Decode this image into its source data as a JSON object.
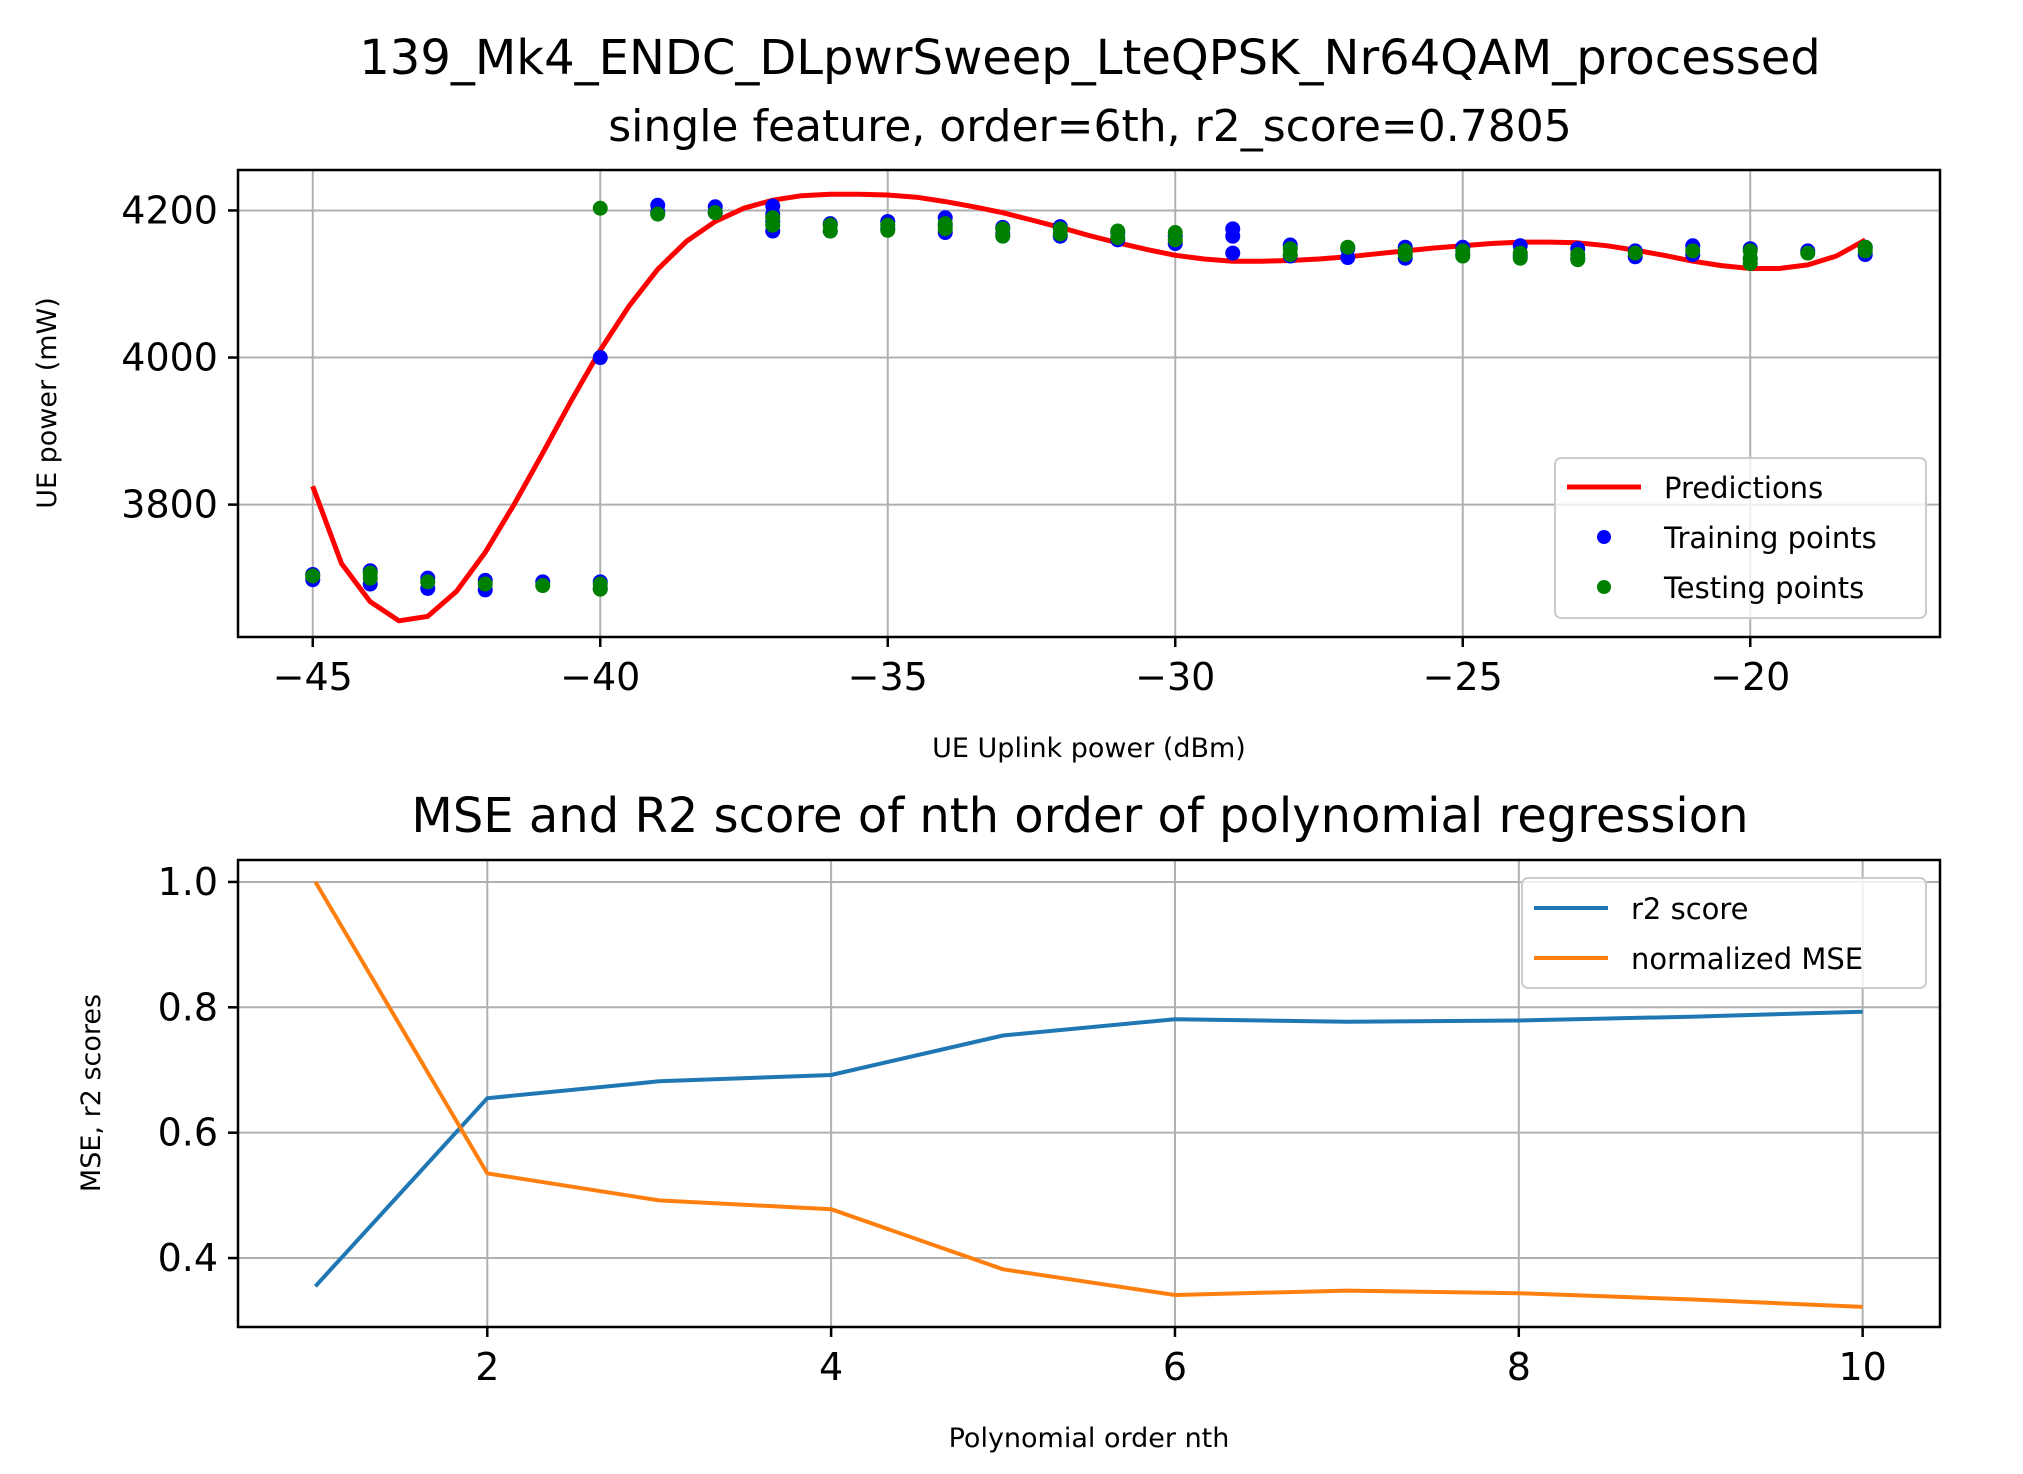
{
  "chart_data": [
    {
      "type": "scatter",
      "title_line1": "139_Mk4_ENDC_DLpwrSweep_LteQPSK_Nr64QAM_processed",
      "title_line2": "single feature, order=6th, r2_score=0.7805",
      "xlabel": "UE Uplink power (dBm)",
      "ylabel": "UE power (mW)",
      "xlim": [
        -46.3,
        -16.7
      ],
      "ylim": [
        3620,
        4255
      ],
      "xticks": [
        -45,
        -40,
        -35,
        -30,
        -25,
        -20
      ],
      "yticks": [
        3800,
        4000,
        4200
      ],
      "xtick_labels": [
        "−45",
        "−40",
        "−35",
        "−30",
        "−25",
        "−20"
      ],
      "ytick_labels": [
        "3800",
        "4000",
        "4200"
      ],
      "grid": true,
      "legend_position": "lower-right",
      "legend": [
        "Predictions",
        "Training points",
        "Testing points"
      ],
      "colors": {
        "predictions": "#ff0000",
        "training": "#0000ff",
        "testing": "#008000"
      },
      "predictions": {
        "x": [
          -45,
          -44.5,
          -44,
          -43.5,
          -43,
          -42.5,
          -42,
          -41.5,
          -41,
          -40.5,
          -40,
          -39.5,
          -39,
          -38.5,
          -38,
          -37.5,
          -37,
          -36.5,
          -36,
          -35.5,
          -35,
          -34.5,
          -34,
          -33.5,
          -33,
          -32.5,
          -32,
          -31.5,
          -31,
          -30.5,
          -30,
          -29.5,
          -29,
          -28.5,
          -28,
          -27.5,
          -27,
          -26.5,
          -26,
          -25.5,
          -25,
          -24.5,
          -24,
          -23.5,
          -23,
          -22.5,
          -22,
          -21.5,
          -21,
          -20.5,
          -20,
          -19.5,
          -19,
          -18.5,
          -18
        ],
        "y": [
          3825,
          3720,
          3668,
          3642,
          3648,
          3682,
          3735,
          3800,
          3870,
          3942,
          4010,
          4070,
          4120,
          4158,
          4185,
          4203,
          4214,
          4220,
          4222,
          4222,
          4221,
          4218,
          4212,
          4205,
          4197,
          4187,
          4177,
          4166,
          4156,
          4147,
          4139,
          4134,
          4131,
          4131,
          4132,
          4134,
          4137,
          4141,
          4145,
          4149,
          4152,
          4155,
          4157,
          4157,
          4156,
          4152,
          4146,
          4139,
          4131,
          4125,
          4121,
          4121,
          4126,
          4138,
          4160
        ]
      },
      "training_points": {
        "x": [
          -45,
          -45,
          -44,
          -44,
          -43,
          -43,
          -42,
          -42,
          -41,
          -40,
          -40,
          -40,
          -39,
          -39,
          -38,
          -38,
          -37,
          -37,
          -37,
          -37,
          -36,
          -36,
          -35,
          -35,
          -34,
          -34,
          -34,
          -33,
          -33,
          -32,
          -32,
          -31,
          -31,
          -30,
          -30,
          -29,
          -29,
          -29,
          -28,
          -28,
          -27,
          -27,
          -26,
          -26,
          -25,
          -25,
          -24,
          -24,
          -23,
          -23,
          -22,
          -22,
          -21,
          -21,
          -20,
          -20,
          -19,
          -18,
          -18
        ],
        "y": [
          3705,
          3698,
          3710,
          3692,
          3700,
          3686,
          3697,
          3684,
          3695,
          4000,
          3695,
          3686,
          4207,
          4198,
          4205,
          4197,
          4206,
          4195,
          4185,
          4172,
          4182,
          4172,
          4185,
          4175,
          4190,
          4180,
          4170,
          4177,
          4168,
          4178,
          4165,
          4170,
          4160,
          4165,
          4155,
          4175,
          4165,
          4142,
          4153,
          4138,
          4148,
          4136,
          4150,
          4135,
          4150,
          4140,
          4152,
          4138,
          4148,
          4135,
          4145,
          4137,
          4152,
          4140,
          4148,
          4135,
          4145,
          4150,
          4140
        ]
      },
      "testing_points": {
        "x": [
          -45,
          -44,
          -44,
          -43,
          -42,
          -41,
          -40,
          -40,
          -40,
          -39,
          -38,
          -37,
          -37,
          -36,
          -36,
          -35,
          -35,
          -34,
          -34,
          -33,
          -33,
          -32,
          -32,
          -31,
          -31,
          -30,
          -30,
          -28,
          -28,
          -27,
          -26,
          -26,
          -25,
          -25,
          -24,
          -24,
          -23,
          -23,
          -22,
          -21,
          -20,
          -20,
          -20,
          -19,
          -18,
          -18
        ],
        "y": [
          3703,
          3707,
          3700,
          3695,
          3692,
          3690,
          4203,
          3692,
          3685,
          4195,
          4197,
          4190,
          4180,
          4180,
          4172,
          4180,
          4173,
          4182,
          4175,
          4175,
          4165,
          4175,
          4168,
          4172,
          4163,
          4170,
          4160,
          4148,
          4140,
          4150,
          4145,
          4140,
          4145,
          4138,
          4142,
          4135,
          4140,
          4133,
          4142,
          4145,
          4145,
          4135,
          4128,
          4142,
          4150,
          4145
        ]
      }
    },
    {
      "type": "line",
      "title": "MSE and R2 score of nth order of polynomial regression",
      "xlabel": "Polynomial order nth",
      "ylabel": "MSE, r2 scores",
      "xlim": [
        0.55,
        10.45
      ],
      "ylim": [
        0.29,
        1.035
      ],
      "xticks": [
        2,
        4,
        6,
        8,
        10
      ],
      "yticks": [
        0.4,
        0.6,
        0.8,
        1.0
      ],
      "xtick_labels": [
        "2",
        "4",
        "6",
        "8",
        "10"
      ],
      "ytick_labels": [
        "0.4",
        "0.6",
        "0.8",
        "1.0"
      ],
      "grid": true,
      "legend_position": "top-right",
      "x": [
        1,
        2,
        3,
        4,
        5,
        6,
        7,
        8,
        9,
        10
      ],
      "series": [
        {
          "name": "r2 score",
          "color": "#1f77b4",
          "values": [
            0.355,
            0.655,
            0.682,
            0.692,
            0.755,
            0.781,
            0.777,
            0.779,
            0.785,
            0.793
          ]
        },
        {
          "name": "normalized MSE",
          "color": "#ff7f0e",
          "values": [
            1.0,
            0.535,
            0.492,
            0.478,
            0.382,
            0.341,
            0.348,
            0.344,
            0.334,
            0.322
          ]
        }
      ]
    }
  ]
}
